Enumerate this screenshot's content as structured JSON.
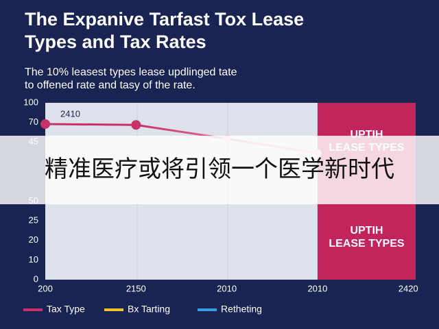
{
  "chart_data": {
    "type": "line",
    "title": [
      "The Expanive Tarfast Tox Lease",
      "Types and Tax Rates"
    ],
    "subtitle": [
      "The 10% leasest types lease updlinged tate",
      "to offened rate and tasy of the rate."
    ],
    "categories": [
      "200",
      "2150",
      "2010",
      "2010",
      "2420"
    ],
    "series": [
      {
        "name": "Tax Type",
        "color": "#c8326a",
        "values": [
          88,
          87.5,
          79.7,
          71.5,
          null
        ]
      },
      {
        "name": "Bx Tarting",
        "color": "#f2c12e",
        "values": [
          null,
          null,
          null,
          null,
          null
        ]
      },
      {
        "name": "Retheting",
        "color": "#3a9be0",
        "values": [
          null,
          null,
          null,
          null,
          null
        ]
      }
    ],
    "annotation": "2410",
    "ylim": [
      0,
      100
    ],
    "yticks": [
      100,
      {
        "value": 88.9,
        "label": "70"
      },
      {
        "value": 77.8,
        "label": "45"
      },
      {
        "value": 44.4,
        "label": "50"
      },
      {
        "value": 33.3,
        "label": "25"
      },
      {
        "value": 22.2,
        "label": "20"
      },
      {
        "value": 11.1,
        "label": "10"
      },
      0
    ],
    "highlight_color": "#c4245c",
    "highlight_labels": [
      [
        "UPTIH",
        "LEASE TYPES"
      ],
      [
        "UPTIH",
        "LEASE TYPES"
      ]
    ],
    "legend": "bottom",
    "overlay_text": "精准医疗或将引领一个医学新时代"
  }
}
